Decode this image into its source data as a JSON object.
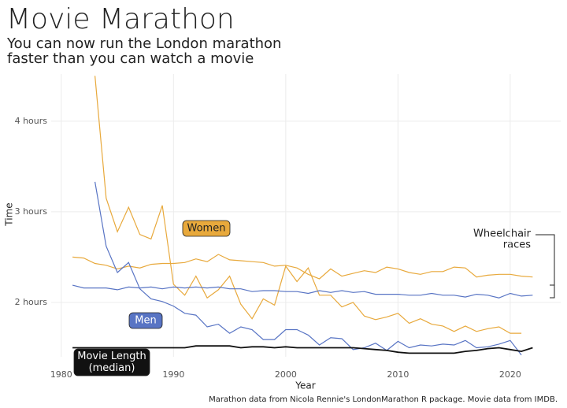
{
  "chart_data": {
    "type": "line",
    "title": "Movie Marathon",
    "subtitle": [
      "You can now run the London marathon",
      "faster than you can watch a movie"
    ],
    "x_label": "Year",
    "y_label": "Time",
    "caption": "Marathon data from Nicola Rennie's LondonMarathon R package. Movie data from IMDB.",
    "x": [
      1981,
      1982,
      1983,
      1984,
      1985,
      1986,
      1987,
      1988,
      1989,
      1990,
      1991,
      1992,
      1993,
      1994,
      1995,
      1996,
      1997,
      1998,
      1999,
      2000,
      2001,
      2002,
      2003,
      2004,
      2005,
      2006,
      2007,
      2008,
      2009,
      2010,
      2011,
      2012,
      2013,
      2014,
      2015,
      2016,
      2017,
      2018,
      2019,
      2020,
      2021,
      2022
    ],
    "xlim": [
      1979.1,
      2024.5
    ],
    "xticks": [
      1980,
      1990,
      2000,
      2010,
      2020
    ],
    "ylim": [
      1.4,
      4.52
    ],
    "yticks": [
      {
        "value": 2,
        "label": "2 hours"
      },
      {
        "value": 3,
        "label": "3 hours"
      },
      {
        "value": 4,
        "label": "4 hours"
      }
    ],
    "grid": true,
    "series": [
      {
        "name": "Women",
        "color": "#e8a93c",
        "values": [
          2.5,
          2.49,
          2.43,
          2.41,
          2.37,
          2.4,
          2.38,
          2.42,
          2.43,
          2.43,
          2.44,
          2.48,
          2.45,
          2.53,
          2.47,
          2.46,
          2.45,
          2.44,
          2.4,
          2.41,
          2.38,
          2.31,
          2.26,
          2.37,
          2.29,
          2.32,
          2.35,
          2.33,
          2.39,
          2.37,
          2.33,
          2.31,
          2.34,
          2.34,
          2.39,
          2.38,
          2.28,
          2.3,
          2.31,
          2.31,
          2.29,
          2.28
        ]
      },
      {
        "color": "#e8a93c",
        "values": [
          null,
          null,
          4.5,
          3.15,
          2.78,
          3.05,
          2.75,
          2.7,
          3.07,
          2.2,
          2.08,
          2.29,
          2.05,
          2.14,
          2.29,
          1.98,
          1.82,
          2.04,
          1.97,
          2.4,
          2.23,
          2.38,
          2.08,
          2.08,
          1.95,
          2.0,
          1.85,
          1.81,
          1.84,
          1.88,
          1.77,
          1.82,
          1.76,
          1.74,
          1.68,
          1.74,
          1.68,
          1.71,
          1.73,
          1.66,
          1.66,
          null
        ]
      },
      {
        "name": "Men",
        "color": "#5874c4",
        "values": [
          2.19,
          2.16,
          2.16,
          2.16,
          2.14,
          2.17,
          2.16,
          2.17,
          2.15,
          2.17,
          2.16,
          2.17,
          2.16,
          2.17,
          2.15,
          2.15,
          2.12,
          2.13,
          2.13,
          2.12,
          2.12,
          2.1,
          2.13,
          2.11,
          2.13,
          2.11,
          2.12,
          2.09,
          2.09,
          2.09,
          2.08,
          2.08,
          2.1,
          2.08,
          2.08,
          2.06,
          2.09,
          2.08,
          2.05,
          2.1,
          2.07,
          2.08
        ]
      },
      {
        "color": "#5874c4",
        "values": [
          null,
          null,
          3.33,
          2.62,
          2.33,
          2.44,
          2.15,
          2.04,
          2.01,
          1.96,
          1.88,
          1.86,
          1.73,
          1.76,
          1.66,
          1.73,
          1.7,
          1.59,
          1.59,
          1.7,
          1.7,
          1.64,
          1.53,
          1.61,
          1.6,
          1.48,
          1.5,
          1.55,
          1.47,
          1.57,
          1.5,
          1.53,
          1.52,
          1.54,
          1.53,
          1.58,
          1.5,
          1.51,
          1.54,
          1.58,
          1.42,
          null
        ]
      },
      {
        "name": [
          "Movie Length",
          "(median)"
        ],
        "color": "#111111",
        "values": [
          1.5,
          1.5,
          1.5,
          1.5,
          1.5,
          1.5,
          1.5,
          1.5,
          1.5,
          1.5,
          1.5,
          1.52,
          1.52,
          1.52,
          1.52,
          1.5,
          1.51,
          1.51,
          1.5,
          1.51,
          1.5,
          1.5,
          1.5,
          1.5,
          1.5,
          1.5,
          1.49,
          1.48,
          1.47,
          1.45,
          1.44,
          1.44,
          1.44,
          1.44,
          1.44,
          1.46,
          1.47,
          1.49,
          1.5,
          1.48,
          1.46,
          1.5
        ]
      }
    ],
    "annotation": [
      "Wheelchair",
      "races"
    ]
  }
}
